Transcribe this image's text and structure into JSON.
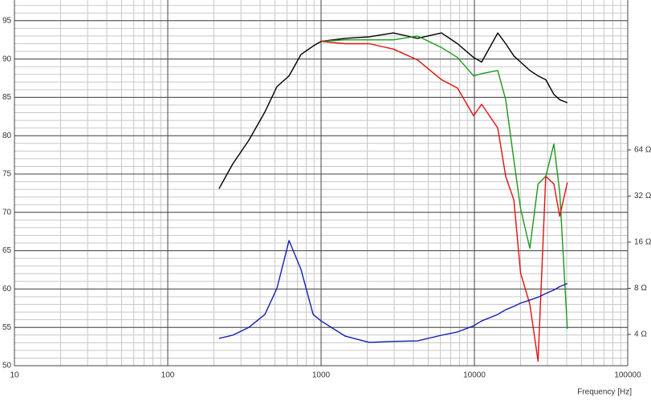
{
  "chart_data": {
    "type": "line",
    "x_label": "Frequency [Hz]",
    "x": [
      216,
      265,
      338,
      430,
      515,
      618,
      740,
      887,
      1000,
      1435,
      2060,
      2960,
      4250,
      6100,
      7760,
      9880,
      11150,
      14200,
      16000,
      18100,
      20000,
      23000,
      26000,
      29200,
      33000,
      36000,
      40400
    ],
    "xlim": [
      10,
      100000
    ],
    "xticks": [
      10,
      100,
      1000,
      10000,
      100000
    ],
    "xlog": true,
    "ylim": [
      50,
      97.7
    ],
    "yticks": [
      50,
      55,
      60,
      65,
      70,
      75,
      80,
      85,
      90,
      95
    ],
    "y2lim": [
      2.5,
      609
    ],
    "y2log": true,
    "y2ticks": [
      {
        "value": 4,
        "label": "4 Ω"
      },
      {
        "value": 8,
        "label": "8 Ω"
      },
      {
        "value": 16,
        "label": "16 Ω"
      },
      {
        "value": 32,
        "label": "32 Ω"
      },
      {
        "value": 64,
        "label": "64 Ω"
      }
    ],
    "grid": true,
    "series": [
      {
        "color": "#000000",
        "values": [
          73.1,
          76.3,
          79.4,
          83.1,
          86.4,
          87.8,
          90.6,
          91.7,
          92.3,
          92.7,
          92.9,
          93.4,
          92.7,
          93.4,
          92.0,
          90.2,
          89.6,
          93.4,
          92.0,
          90.4,
          89.6,
          88.5,
          87.8,
          87.3,
          85.4,
          84.7,
          84.3
        ]
      },
      {
        "color": "#1a9a1a",
        "values": [
          null,
          null,
          null,
          null,
          null,
          null,
          null,
          null,
          92.3,
          92.5,
          92.5,
          92.5,
          93.0,
          91.5,
          90.2,
          87.8,
          88.1,
          88.5,
          84.7,
          76.8,
          70.5,
          65.3,
          73.7,
          74.7,
          78.9,
          72.6,
          54.8
        ]
      },
      {
        "color": "#e01010",
        "values": [
          null,
          null,
          null,
          null,
          null,
          null,
          null,
          null,
          92.3,
          92.0,
          92.0,
          91.3,
          89.9,
          87.3,
          86.2,
          82.6,
          84.1,
          81.0,
          74.7,
          71.6,
          62.1,
          58.0,
          50.6,
          74.7,
          73.7,
          69.5,
          73.9
        ]
      },
      {
        "color": "#1020b0",
        "axis": "y2",
        "values": [
          3.77,
          3.95,
          4.45,
          5.4,
          8.0,
          16.4,
          10.6,
          5.4,
          4.9,
          3.9,
          3.55,
          3.6,
          3.63,
          3.95,
          4.15,
          4.55,
          4.9,
          5.4,
          5.8,
          6.1,
          6.4,
          6.7,
          7.0,
          7.4,
          7.8,
          8.2,
          8.6
        ]
      }
    ]
  }
}
